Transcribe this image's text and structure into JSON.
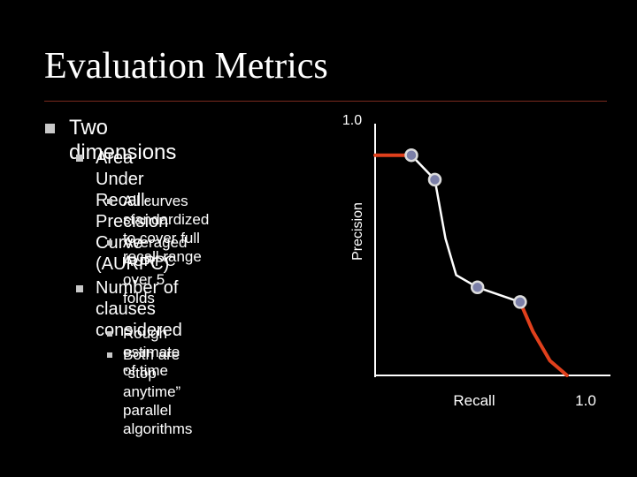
{
  "slide": {
    "title": "Evaluation Metrics",
    "bullets": {
      "b1": "Two dimensions",
      "b1_1": "Area Under Recall-\nPrecision Curve (AURPC)",
      "b1_1_1": "All curves standardized\nto cover full recall range",
      "b1_1_2": "Averaged AURPC\nover 5 folds",
      "b1_2": "Number of clauses\nconsidered",
      "b1_2_1": "Rough estimate of time",
      "b1_2_2": "Both are “stop anytime”\nparallel algorithms"
    }
  },
  "colors": {
    "background": "#000000",
    "text": "#ffffff",
    "curve_end": "#e0401c",
    "curve_mid": "#ffffff",
    "point_fill": "#7b7fa8",
    "point_stroke": "#dcdcdc",
    "axis": "#ffffff",
    "rule": "#7a2a1e",
    "bullet": "#c8c8c8"
  },
  "chart_data": {
    "type": "line",
    "title": "",
    "xlabel": "Recall",
    "ylabel": "Precision",
    "x_tick_label": "1.0",
    "y_tick_label": "1.0",
    "xlim": [
      0,
      1
    ],
    "ylim": [
      0,
      1
    ],
    "grid": false,
    "legend": "none",
    "points": [
      {
        "x": 0.17,
        "y": 0.9
      },
      {
        "x": 0.28,
        "y": 0.8
      },
      {
        "x": 0.48,
        "y": 0.36
      },
      {
        "x": 0.68,
        "y": 0.3
      }
    ],
    "curve": [
      {
        "x": 0.0,
        "y": 0.9,
        "segment": "red"
      },
      {
        "x": 0.17,
        "y": 0.9,
        "segment": "red"
      },
      {
        "x": 0.28,
        "y": 0.8,
        "segment": "white"
      },
      {
        "x": 0.33,
        "y": 0.56,
        "segment": "white"
      },
      {
        "x": 0.38,
        "y": 0.41,
        "segment": "white"
      },
      {
        "x": 0.48,
        "y": 0.36,
        "segment": "white"
      },
      {
        "x": 0.68,
        "y": 0.3,
        "segment": "white"
      },
      {
        "x": 0.74,
        "y": 0.18,
        "segment": "red"
      },
      {
        "x": 0.82,
        "y": 0.06,
        "segment": "red"
      },
      {
        "x": 0.9,
        "y": 0.0,
        "segment": "red"
      }
    ]
  }
}
